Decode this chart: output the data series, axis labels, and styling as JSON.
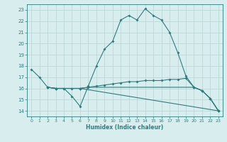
{
  "line1_x": [
    0,
    1,
    2,
    3,
    4,
    5,
    6,
    7,
    8,
    9,
    10,
    11,
    12,
    13,
    14,
    15,
    16,
    17,
    18,
    19,
    20,
    21,
    22,
    23
  ],
  "line1_y": [
    17.7,
    17.0,
    16.1,
    16.0,
    16.0,
    15.3,
    14.4,
    16.2,
    18.0,
    19.5,
    20.2,
    22.1,
    22.5,
    22.1,
    23.1,
    22.5,
    22.1,
    21.0,
    19.2,
    17.1,
    16.1,
    15.8,
    15.1,
    14.0
  ],
  "line2_x": [
    2,
    3,
    4,
    5,
    6,
    7,
    8,
    9,
    10,
    11,
    12,
    13,
    14,
    15,
    16,
    17,
    18,
    19,
    20,
    21,
    22,
    23
  ],
  "line2_y": [
    16.1,
    16.0,
    16.0,
    16.0,
    16.0,
    16.1,
    16.2,
    16.3,
    16.4,
    16.5,
    16.6,
    16.6,
    16.7,
    16.7,
    16.7,
    16.8,
    16.8,
    16.9,
    16.1,
    15.8,
    15.1,
    14.0
  ],
  "line3_x": [
    2,
    3,
    6,
    7,
    20,
    21,
    22,
    23
  ],
  "line3_y": [
    16.1,
    16.0,
    16.0,
    16.1,
    16.1,
    15.8,
    15.1,
    14.0
  ],
  "line4_x": [
    2,
    3,
    6,
    23
  ],
  "line4_y": [
    16.1,
    16.0,
    16.0,
    14.0
  ],
  "color": "#2d7d7d",
  "bg_color": "#d8eeee",
  "grid_color": "#b8d4d4",
  "xlabel": "Humidex (Indice chaleur)",
  "xlim": [
    -0.5,
    23.5
  ],
  "ylim": [
    13.5,
    23.5
  ],
  "yticks": [
    14,
    15,
    16,
    17,
    18,
    19,
    20,
    21,
    22,
    23
  ],
  "xticks": [
    0,
    1,
    2,
    3,
    4,
    5,
    6,
    7,
    8,
    9,
    10,
    11,
    12,
    13,
    14,
    15,
    16,
    17,
    18,
    19,
    20,
    21,
    22,
    23
  ]
}
